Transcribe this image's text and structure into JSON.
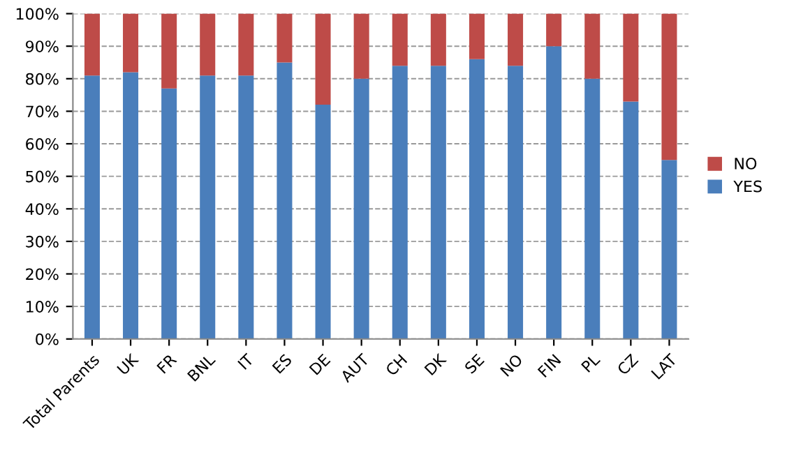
{
  "chart_data": {
    "type": "bar",
    "stacked": true,
    "categories": [
      "Total Parents",
      "UK",
      "FR",
      "BNL",
      "IT",
      "ES",
      "DE",
      "AUT",
      "CH",
      "DK",
      "SE",
      "NO",
      "FIN",
      "PL",
      "CZ",
      "LAT"
    ],
    "series": [
      {
        "name": "YES",
        "color": "#4a7ebb",
        "values": [
          81,
          82,
          77,
          81,
          81,
          85,
          72,
          80,
          84,
          84,
          86,
          84,
          90,
          80,
          73,
          55
        ]
      },
      {
        "name": "NO",
        "color": "#be4b48",
        "values": [
          19,
          18,
          23,
          19,
          19,
          15,
          28,
          20,
          16,
          16,
          14,
          16,
          10,
          20,
          27,
          45
        ]
      }
    ],
    "ylim": [
      0,
      100
    ],
    "yticks": [
      {
        "value": 0,
        "label": "0%"
      },
      {
        "value": 10,
        "label": "10%"
      },
      {
        "value": 20,
        "label": "20%"
      },
      {
        "value": 30,
        "label": "30%"
      },
      {
        "value": 40,
        "label": "40%"
      },
      {
        "value": 50,
        "label": "50%"
      },
      {
        "value": 60,
        "label": "60%"
      },
      {
        "value": 70,
        "label": "70%"
      },
      {
        "value": 80,
        "label": "80%"
      },
      {
        "value": 90,
        "label": "90%"
      },
      {
        "value": 100,
        "label": "100%"
      }
    ],
    "grid": "y",
    "legend": "right"
  }
}
